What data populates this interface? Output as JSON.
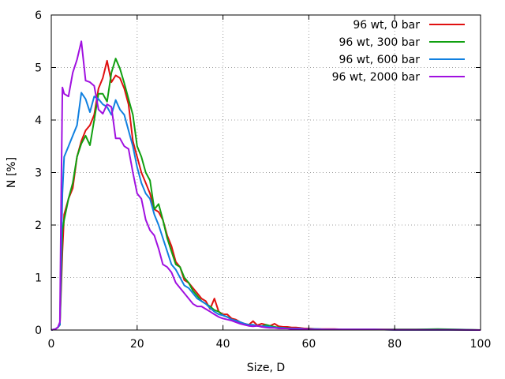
{
  "chart_data": {
    "type": "line",
    "xlabel": "Size, D",
    "ylabel": "N [%]",
    "xlim": [
      0,
      100
    ],
    "ylim": [
      0,
      6
    ],
    "x_ticks": [
      "0",
      "20",
      "40",
      "60",
      "80",
      "100"
    ],
    "y_ticks": [
      "0",
      "1",
      "2",
      "3",
      "4",
      "5",
      "6"
    ],
    "grid": true,
    "legend_position": "top-right",
    "series": [
      {
        "name": "96 wt, 0 bar",
        "color": "#e01010",
        "x": [
          0,
          1,
          1.5,
          2,
          2.3,
          2.6,
          3,
          4,
          5,
          6,
          7,
          8,
          9,
          10,
          11,
          12,
          13,
          14,
          15,
          16,
          17,
          18,
          19,
          20,
          21,
          22,
          23,
          24,
          25,
          26,
          27,
          28,
          29,
          30,
          31,
          32,
          33,
          34,
          35,
          36,
          37,
          38,
          39,
          40,
          41,
          42,
          43,
          44,
          45,
          46,
          47,
          48,
          49,
          50,
          51,
          52,
          53,
          54,
          55,
          56,
          57,
          58,
          59,
          60,
          62,
          64,
          66,
          68,
          70,
          75,
          80,
          85,
          90,
          95,
          100
        ],
        "y": [
          0,
          0.02,
          0.05,
          0.1,
          0.8,
          1.5,
          2.2,
          2.5,
          2.7,
          3.3,
          3.6,
          3.8,
          3.9,
          4.1,
          4.6,
          4.8,
          5.13,
          4.72,
          4.85,
          4.8,
          4.6,
          4.3,
          3.6,
          3.3,
          3.0,
          2.8,
          2.6,
          2.3,
          2.25,
          2.1,
          1.8,
          1.6,
          1.3,
          1.2,
          0.95,
          0.9,
          0.8,
          0.7,
          0.6,
          0.55,
          0.4,
          0.6,
          0.35,
          0.3,
          0.3,
          0.22,
          0.2,
          0.15,
          0.12,
          0.1,
          0.17,
          0.09,
          0.12,
          0.1,
          0.08,
          0.12,
          0.07,
          0.06,
          0.06,
          0.05,
          0.05,
          0.04,
          0.03,
          0.03,
          0.02,
          0.02,
          0.02,
          0.01,
          0.01,
          0.01,
          0.01,
          0.01,
          0.01,
          0.005,
          0
        ]
      },
      {
        "name": "96 wt, 300 bar",
        "color": "#10a010",
        "x": [
          0,
          1,
          1.5,
          2,
          2.3,
          2.6,
          3,
          4,
          5,
          6,
          7,
          8,
          9,
          10,
          11,
          12,
          13,
          14,
          15,
          16,
          17,
          18,
          19,
          20,
          21,
          22,
          23,
          24,
          25,
          26,
          27,
          28,
          29,
          30,
          31,
          32,
          33,
          34,
          35,
          36,
          37,
          38,
          39,
          40,
          41,
          42,
          43,
          44,
          45,
          46,
          47,
          48,
          49,
          50,
          51,
          52,
          53,
          54,
          55,
          56,
          57,
          58,
          59,
          60,
          62,
          64,
          66,
          68,
          70,
          75,
          80,
          85,
          90,
          95,
          100
        ],
        "y": [
          0,
          0.02,
          0.05,
          0.1,
          1.0,
          1.9,
          2.1,
          2.5,
          2.8,
          3.3,
          3.55,
          3.7,
          3.52,
          4.0,
          4.5,
          4.5,
          4.35,
          4.9,
          5.17,
          4.98,
          4.7,
          4.4,
          4.1,
          3.5,
          3.3,
          3.0,
          2.85,
          2.3,
          2.4,
          2.1,
          1.75,
          1.5,
          1.25,
          1.2,
          1.0,
          0.9,
          0.75,
          0.65,
          0.55,
          0.5,
          0.45,
          0.38,
          0.35,
          0.28,
          0.25,
          0.2,
          0.18,
          0.13,
          0.12,
          0.1,
          0.1,
          0.08,
          0.07,
          0.1,
          0.08,
          0.06,
          0.05,
          0.04,
          0.04,
          0.03,
          0.03,
          0.03,
          0.02,
          0.02,
          0.02,
          0.01,
          0.01,
          0.01,
          0.01,
          0.01,
          0.01,
          0.01,
          0.02,
          0.01,
          0
        ]
      },
      {
        "name": "96 wt, 600 bar",
        "color": "#1080e0",
        "x": [
          0,
          1,
          1.5,
          2,
          2.3,
          2.6,
          3,
          4,
          5,
          6,
          7,
          8,
          9,
          10,
          11,
          12,
          13,
          14,
          15,
          16,
          17,
          18,
          19,
          20,
          21,
          22,
          23,
          24,
          25,
          26,
          27,
          28,
          29,
          30,
          31,
          32,
          33,
          34,
          35,
          36,
          37,
          38,
          39,
          40,
          41,
          42,
          43,
          44,
          45,
          46,
          47,
          48,
          49,
          50,
          51,
          52,
          53,
          54,
          55,
          56,
          57,
          58,
          59,
          60,
          62,
          64,
          66,
          68,
          70,
          75,
          80,
          85,
          90,
          95,
          100
        ],
        "y": [
          0,
          0.02,
          0.05,
          0.1,
          1.4,
          2.6,
          3.3,
          3.5,
          3.7,
          3.9,
          4.52,
          4.4,
          4.15,
          4.45,
          4.4,
          4.3,
          4.25,
          4.1,
          4.38,
          4.2,
          4.1,
          3.8,
          3.5,
          3.1,
          2.8,
          2.6,
          2.5,
          2.2,
          2.0,
          1.75,
          1.5,
          1.25,
          1.15,
          1.0,
          0.85,
          0.8,
          0.7,
          0.6,
          0.55,
          0.5,
          0.42,
          0.35,
          0.3,
          0.28,
          0.25,
          0.2,
          0.18,
          0.15,
          0.12,
          0.1,
          0.1,
          0.08,
          0.07,
          0.07,
          0.06,
          0.05,
          0.04,
          0.04,
          0.03,
          0.03,
          0.03,
          0.03,
          0.02,
          0.02,
          0.02,
          0.01,
          0.01,
          0.01,
          0.01,
          0.01,
          0.005,
          0.005,
          0.005,
          0.005,
          0
        ]
      },
      {
        "name": "96 wt, 2000 bar",
        "color": "#a010e0",
        "x": [
          0,
          1,
          1.5,
          2,
          2.3,
          2.6,
          3,
          4,
          5,
          6,
          7,
          8,
          9,
          10,
          11,
          12,
          13,
          14,
          15,
          16,
          17,
          18,
          19,
          20,
          21,
          22,
          23,
          24,
          25,
          26,
          27,
          28,
          29,
          30,
          31,
          32,
          33,
          34,
          35,
          36,
          37,
          38,
          39,
          40,
          41,
          42,
          43,
          44,
          45,
          46,
          47,
          48,
          49,
          50,
          51,
          52,
          53,
          54,
          55,
          56,
          57,
          58,
          59,
          60,
          62,
          64,
          66,
          68,
          70,
          75,
          80,
          85,
          90,
          95,
          100
        ],
        "y": [
          0,
          0.02,
          0.05,
          0.15,
          2.5,
          4.62,
          4.5,
          4.45,
          4.9,
          5.15,
          5.5,
          4.75,
          4.72,
          4.65,
          4.2,
          4.12,
          4.3,
          4.25,
          3.65,
          3.65,
          3.5,
          3.45,
          3.0,
          2.6,
          2.5,
          2.1,
          1.9,
          1.8,
          1.55,
          1.25,
          1.2,
          1.1,
          0.9,
          0.8,
          0.7,
          0.6,
          0.5,
          0.45,
          0.45,
          0.4,
          0.35,
          0.3,
          0.25,
          0.22,
          0.2,
          0.18,
          0.15,
          0.12,
          0.1,
          0.08,
          0.07,
          0.08,
          0.06,
          0.05,
          0.04,
          0.04,
          0.03,
          0.03,
          0.03,
          0.02,
          0.02,
          0.02,
          0.02,
          0.01,
          0.01,
          0.01,
          0.01,
          0.01,
          0.01,
          0.01,
          0.005,
          0.005,
          0.005,
          0.005,
          0
        ]
      }
    ]
  }
}
